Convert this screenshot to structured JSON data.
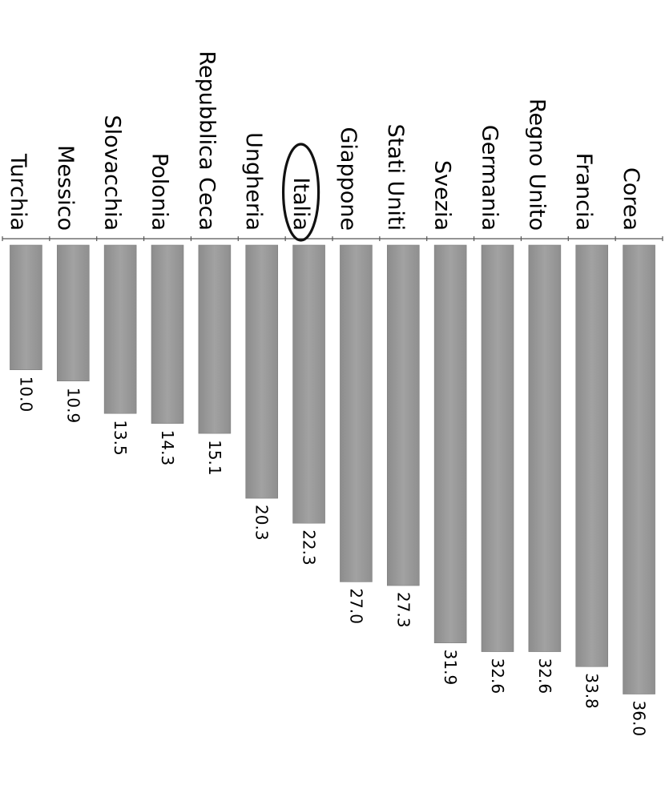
{
  "chart_data": {
    "type": "bar",
    "orientation": "rotated-90",
    "categories": [
      "Turchia",
      "Messico",
      "Slovacchia",
      "Polonia",
      "Repubblica Ceca",
      "Ungheria",
      "Italia",
      "Giappone",
      "Stati Uniti",
      "Svezia",
      "Germania",
      "Regno Unito",
      "Francia",
      "Corea"
    ],
    "values": [
      10.0,
      10.9,
      13.5,
      14.3,
      15.1,
      20.3,
      22.3,
      27.0,
      27.3,
      31.9,
      32.6,
      32.6,
      33.8,
      36.0
    ],
    "value_labels": [
      "10.0",
      "10.9",
      "13.5",
      "14.3",
      "15.1",
      "20.3",
      "22.3",
      "27.0",
      "27.3",
      "31.9",
      "32.6",
      "32.6",
      "33.8",
      "36.0"
    ],
    "highlighted_category": "Italia",
    "bar_color": "#9a9a9a",
    "title": "",
    "xlabel": "",
    "ylabel": "",
    "ylim": [
      0,
      36.0
    ],
    "grid": false
  }
}
